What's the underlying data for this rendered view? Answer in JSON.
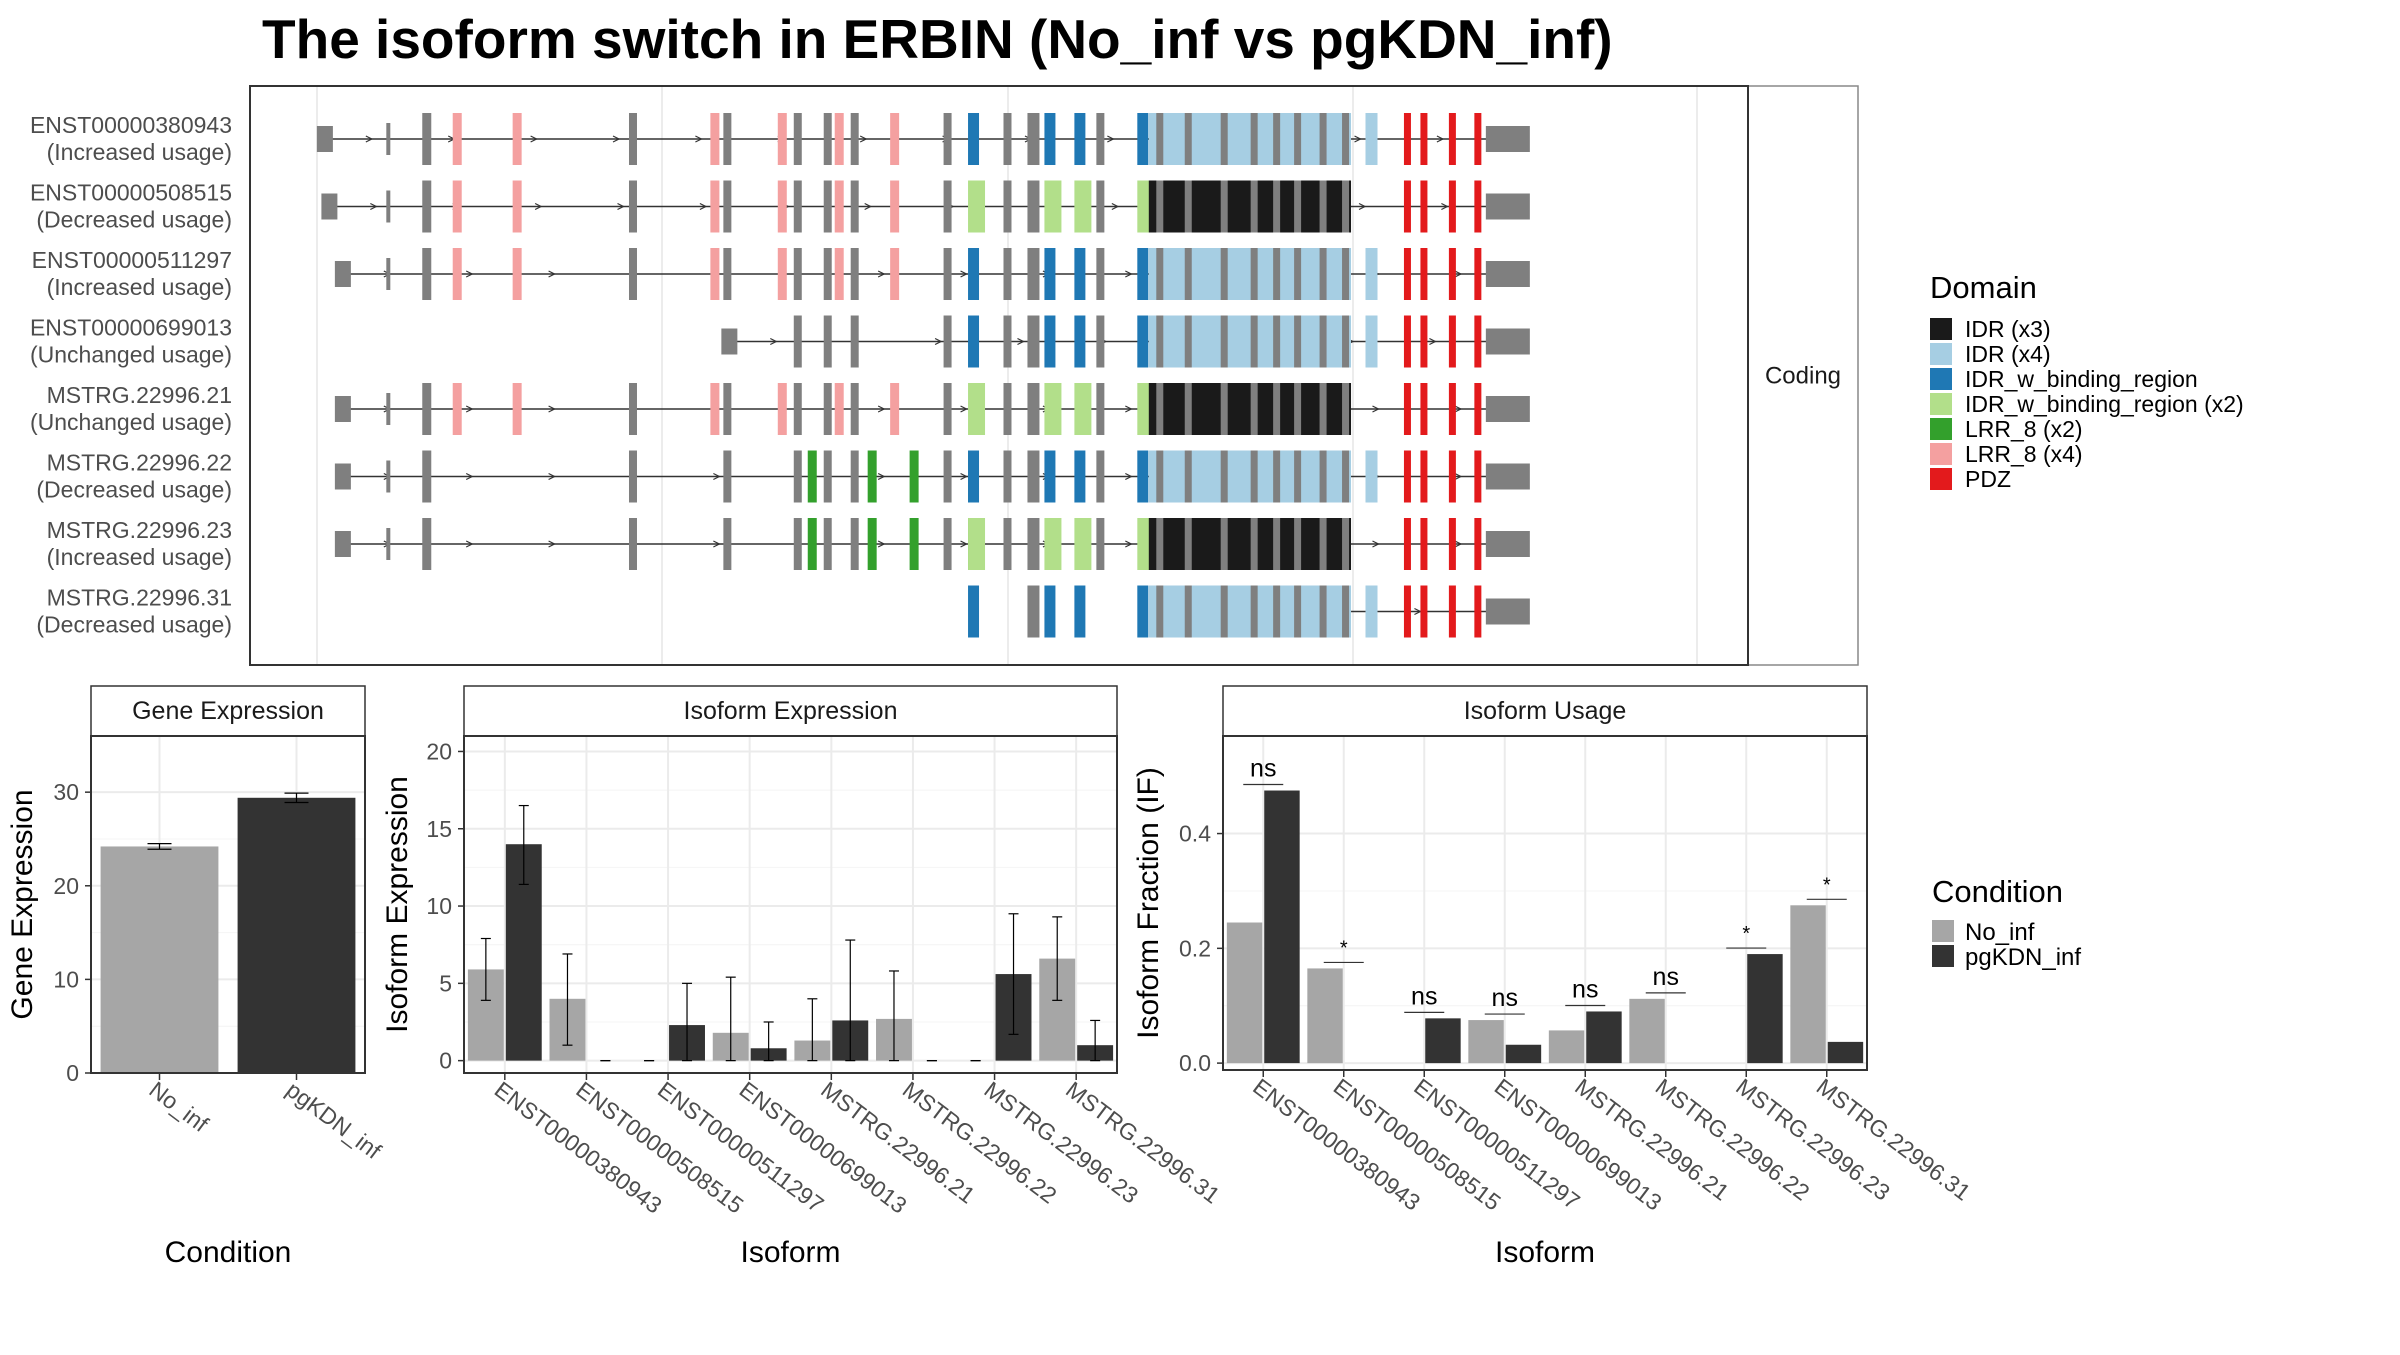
{
  "title": "The isoform switch in ERBIN (No_inf vs pgKDN_inf)",
  "colors": {
    "IDR (x3)": "#1a1a1a",
    "IDR (x4)": "#a6cee3",
    "IDR_w_binding_region": "#1f78b4",
    "IDR_w_binding_region (x2)": "#b2df8a",
    "LRR_8 (x2)": "#33a02c",
    "LRR_8 (x4)": "#f4a0a0",
    "PDZ": "#e31a1c",
    "exon": "#7f7f7f",
    "No_inf": "#a6a6a6",
    "pgKDN_inf": "#333333"
  },
  "chart_data": [
    {
      "type": "gene_structure",
      "facet_label": "Coding",
      "legend_title": "Domain",
      "legend": [
        "IDR (x3)",
        "IDR (x4)",
        "IDR_w_binding_region",
        "IDR_w_binding_region (x2)",
        "LRR_8 (x2)",
        "LRR_8 (x4)",
        "PDZ"
      ],
      "isoforms": [
        {
          "id": "ENST00000380943",
          "usage": "(Increased usage)",
          "start": 0.05,
          "style": "A",
          "lrr": "LRR_8 (x4)",
          "idr": "IDR_w_binding_region",
          "tail": "IDR (x4)",
          "extra": true
        },
        {
          "id": "ENST00000508515",
          "usage": "(Decreased usage)",
          "start": 0.053,
          "style": "A",
          "lrr": "LRR_8 (x4)",
          "idr": "IDR_w_binding_region (x2)",
          "tail": "IDR (x3)",
          "extra": false
        },
        {
          "id": "ENST00000511297",
          "usage": "(Increased usage)",
          "start": 0.062,
          "style": "A",
          "lrr": "LRR_8 (x4)",
          "idr": "IDR_w_binding_region",
          "tail": "IDR (x4)",
          "extra": true
        },
        {
          "id": "ENST00000699013",
          "usage": "(Unchanged usage)",
          "start": 0.32,
          "style": "B",
          "lrr": "none",
          "idr": "IDR_w_binding_region",
          "tail": "IDR (x4)",
          "extra": true
        },
        {
          "id": "MSTRG.22996.21",
          "usage": "(Unchanged usage)",
          "start": 0.062,
          "style": "C",
          "lrr": "LRR_8 (x4)",
          "idr": "IDR_w_binding_region (x2)",
          "tail": "IDR (x3)",
          "extra": false
        },
        {
          "id": "MSTRG.22996.22",
          "usage": "(Decreased usage)",
          "start": 0.062,
          "style": "D",
          "lrr": "LRR_8 (x2)",
          "idr": "IDR_w_binding_region",
          "tail": "IDR (x4)",
          "extra": true
        },
        {
          "id": "MSTRG.22996.23",
          "usage": "(Increased usage)",
          "start": 0.062,
          "style": "D",
          "lrr": "LRR_8 (x2)",
          "idr": "IDR_w_binding_region (x2)",
          "tail": "IDR (x3)",
          "extra": false
        },
        {
          "id": "MSTRG.22996.31",
          "usage": "(Decreased usage)",
          "start": 0.64,
          "style": "E",
          "lrr": "none",
          "idr": "IDR_w_binding_region",
          "tail": "IDR (x4)",
          "extra": true
        }
      ]
    },
    {
      "type": "bar",
      "strip": "Gene Expression",
      "ylabel": "Gene Expression",
      "xlabel": "Condition",
      "categories": [
        "No_inf",
        "pgKDN_inf"
      ],
      "values": [
        24.2,
        29.4
      ],
      "err": [
        0.3,
        0.5
      ],
      "ylim": [
        0,
        36
      ],
      "yticks": [
        0,
        10,
        20,
        30
      ]
    },
    {
      "type": "bar",
      "strip": "Isoform Expression",
      "ylabel": "Isoform Expression",
      "xlabel": "Isoform",
      "categories": [
        "ENST00000380943",
        "ENST00000508515",
        "ENST00000511297",
        "ENST00000699013",
        "MSTRG.22996.21",
        "MSTRG.22996.22",
        "MSTRG.22996.23",
        "MSTRG.22996.31"
      ],
      "series": [
        {
          "name": "No_inf",
          "values": [
            5.9,
            4.0,
            0.0,
            1.8,
            1.3,
            2.7,
            0.0,
            6.6
          ],
          "lo": [
            3.9,
            1.0,
            0.0,
            0.0,
            0.0,
            0.0,
            0.0,
            3.9
          ],
          "hi": [
            7.9,
            6.9,
            0.0,
            5.4,
            4.0,
            5.8,
            0.0,
            9.3
          ]
        },
        {
          "name": "pgKDN_inf",
          "values": [
            14.0,
            0.0,
            2.3,
            0.8,
            2.6,
            0.0,
            5.6,
            1.0
          ],
          "lo": [
            11.4,
            0.0,
            0.0,
            0.0,
            0.0,
            0.0,
            1.7,
            0.0
          ],
          "hi": [
            16.5,
            0.0,
            5.0,
            2.5,
            7.8,
            0.0,
            9.5,
            2.6
          ]
        }
      ],
      "ylim": [
        -0.8,
        21
      ],
      "yticks": [
        0,
        5,
        10,
        15,
        20
      ]
    },
    {
      "type": "bar",
      "strip": "Isoform Usage",
      "ylabel": "Isoform Fraction (IF)",
      "xlabel": "Isoform",
      "categories": [
        "ENST00000380943",
        "ENST00000508515",
        "ENST00000511297",
        "ENST00000699013",
        "MSTRG.22996.21",
        "MSTRG.22996.22",
        "MSTRG.22996.23",
        "MSTRG.22996.31"
      ],
      "series": [
        {
          "name": "No_inf",
          "values": [
            0.245,
            0.165,
            0.0,
            0.075,
            0.057,
            0.112,
            0.0,
            0.275
          ]
        },
        {
          "name": "pgKDN_inf",
          "values": [
            0.475,
            0.0,
            0.078,
            0.032,
            0.09,
            0.0,
            0.19,
            0.037
          ]
        }
      ],
      "significance": [
        "ns",
        "*",
        "ns",
        "ns",
        "ns",
        "ns",
        "*",
        "*"
      ],
      "ylim": [
        -0.012,
        0.57
      ],
      "yticks": [
        0.0,
        0.2,
        0.4
      ],
      "ytick_labels": [
        "0.0",
        "0.2",
        "0.4"
      ]
    }
  ],
  "condition_legend": {
    "title": "Condition",
    "items": [
      "No_inf",
      "pgKDN_inf"
    ]
  }
}
